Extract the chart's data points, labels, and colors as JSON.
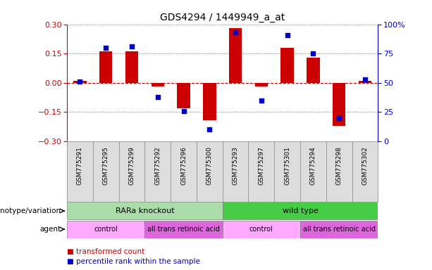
{
  "title": "GDS4294 / 1449949_a_at",
  "samples": [
    "GSM775291",
    "GSM775295",
    "GSM775299",
    "GSM775292",
    "GSM775296",
    "GSM775300",
    "GSM775293",
    "GSM775297",
    "GSM775301",
    "GSM775294",
    "GSM775298",
    "GSM775302"
  ],
  "bar_values": [
    0.01,
    0.16,
    0.16,
    -0.02,
    -0.13,
    -0.19,
    0.28,
    -0.02,
    0.18,
    0.13,
    -0.22,
    0.01
  ],
  "scatter_values": [
    51,
    80,
    81,
    38,
    26,
    10,
    93,
    35,
    91,
    75,
    20,
    53
  ],
  "ylim_left": [
    -0.3,
    0.3
  ],
  "ylim_right": [
    0,
    100
  ],
  "yticks_left": [
    -0.3,
    -0.15,
    0,
    0.15,
    0.3
  ],
  "yticks_right": [
    0,
    25,
    50,
    75,
    100
  ],
  "bar_color": "#cc0000",
  "scatter_color": "#0000cc",
  "hline_color": "#cc0000",
  "dotted_color": "#555555",
  "bg_color": "#ffffff",
  "label_bg_color": "#dddddd",
  "genotype_groups": [
    {
      "label": "RARa knockout",
      "start": 0,
      "end": 6,
      "color": "#aaddaa"
    },
    {
      "label": "wild type",
      "start": 6,
      "end": 12,
      "color": "#44cc44"
    }
  ],
  "agent_groups": [
    {
      "label": "control",
      "start": 0,
      "end": 3,
      "color": "#ffaaff"
    },
    {
      "label": "all trans retinoic acid",
      "start": 3,
      "end": 6,
      "color": "#dd66dd"
    },
    {
      "label": "control",
      "start": 6,
      "end": 9,
      "color": "#ffaaff"
    },
    {
      "label": "all trans retinoic acid",
      "start": 9,
      "end": 12,
      "color": "#dd66dd"
    }
  ],
  "legend_items": [
    {
      "label": "transformed count",
      "color": "#cc0000"
    },
    {
      "label": "percentile rank within the sample",
      "color": "#0000cc"
    }
  ],
  "genotype_label": "genotype/variation",
  "agent_label": "agent"
}
